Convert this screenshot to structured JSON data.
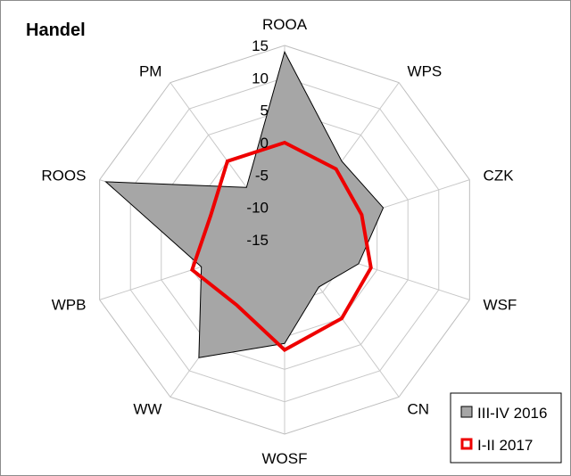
{
  "chart_data": {
    "type": "radar",
    "title": "Handel",
    "categories": [
      "ROOA",
      "WPS",
      "CZK",
      "WSF",
      "CN",
      "WOSF",
      "WW",
      "WPB",
      "ROOS",
      "PM"
    ],
    "rlim": [
      -15,
      15
    ],
    "ticks": [
      "15",
      "10",
      "5",
      "0",
      "-5",
      "-10",
      "-15"
    ],
    "tick_values": [
      15,
      10,
      5,
      0,
      -5,
      -10,
      -15
    ],
    "grid": true,
    "legend_position": "bottom-right",
    "series": [
      {
        "name": "III-IV 2016",
        "values": [
          14,
          0,
          1,
          -3,
          -6,
          1,
          7.5,
          -1.5,
          14,
          -5
        ],
        "fill": "#a6a6a6",
        "stroke": "#000000"
      },
      {
        "name": "I-II 2017",
        "values": [
          0,
          -1.5,
          -2.5,
          -1,
          0,
          2,
          -2.5,
          0,
          -3,
          0
        ],
        "fill": "none",
        "stroke": "#ee0000"
      }
    ]
  }
}
